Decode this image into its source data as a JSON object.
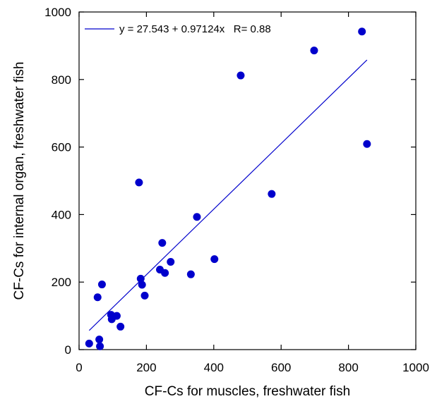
{
  "chart_data": {
    "type": "scatter",
    "xlabel": "CF-Cs for muscles, freshwater fish",
    "ylabel": "CF-Cs for internal organ, freshwater fish",
    "xlim": [
      0,
      1000
    ],
    "ylim": [
      0,
      1000
    ],
    "xticks": [
      "0",
      "200",
      "400",
      "600",
      "800",
      "1000"
    ],
    "yticks": [
      "0",
      "200",
      "400",
      "600",
      "800",
      "1000"
    ],
    "grid": false,
    "legend_position": "top-left",
    "colors": {
      "points": "#0000cc",
      "fit_line": "#0000cc",
      "axes": "#000000"
    },
    "series": [
      {
        "values": [
          [
            30,
            18
          ],
          [
            55,
            155
          ],
          [
            60,
            30
          ],
          [
            62,
            10
          ],
          [
            68,
            193
          ],
          [
            95,
            103
          ],
          [
            97,
            90
          ],
          [
            112,
            100
          ],
          [
            123,
            68
          ],
          [
            178,
            495
          ],
          [
            183,
            210
          ],
          [
            187,
            192
          ],
          [
            195,
            160
          ],
          [
            240,
            237
          ],
          [
            247,
            316
          ],
          [
            255,
            227
          ],
          [
            272,
            260
          ],
          [
            332,
            223
          ],
          [
            350,
            393
          ],
          [
            402,
            268
          ],
          [
            480,
            812
          ],
          [
            572,
            461
          ],
          [
            698,
            886
          ],
          [
            840,
            942
          ],
          [
            855,
            609
          ]
        ]
      }
    ],
    "fit": {
      "intercept": 27.543,
      "slope": 0.97124,
      "x_range": [
        30,
        855
      ],
      "label": "y = 27.543 + 0.97124x   R= 0.88"
    }
  }
}
